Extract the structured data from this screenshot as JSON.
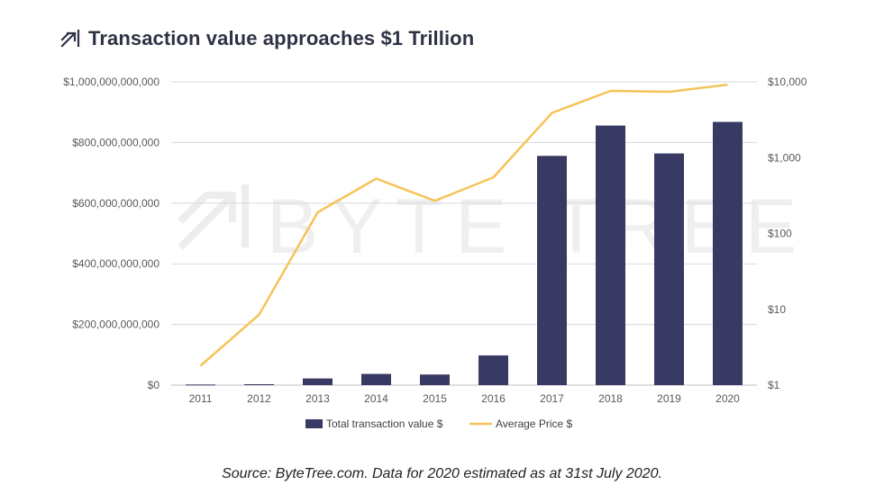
{
  "title": "Transaction value approaches $1 Trillion",
  "watermark": "BYTE TREE",
  "source": "Source: ByteTree.com. Data for 2020 estimated as at 31st July 2020.",
  "colors": {
    "bar": "#383a63",
    "line": "#f5c458",
    "grid": "#d9d9d9",
    "title": "#2e3344",
    "tick": "#595959"
  },
  "chart_data": {
    "type": "bar",
    "categories": [
      "2011",
      "2012",
      "2013",
      "2014",
      "2015",
      "2016",
      "2017",
      "2018",
      "2019",
      "2020"
    ],
    "series": [
      {
        "name": "Total transaction value $",
        "type": "bar",
        "axis": "left",
        "values": [
          2000000000,
          3000000000,
          22000000000,
          37000000000,
          35000000000,
          98000000000,
          756000000000,
          856000000000,
          764000000000,
          868000000000
        ]
      },
      {
        "name": "Average Price $",
        "type": "line",
        "axis": "right",
        "values": [
          1.8,
          8.5,
          190,
          530,
          270,
          550,
          3900,
          7600,
          7400,
          9200
        ]
      }
    ],
    "y_left": {
      "ticks": [
        0,
        200000000000,
        400000000000,
        600000000000,
        800000000000,
        1000000000000
      ],
      "tick_labels": [
        "$0",
        "$200,000,000,000",
        "$400,000,000,000",
        "$600,000,000,000",
        "$800,000,000,000",
        "$1,000,000,000,000"
      ],
      "ylim": [
        0,
        1000000000000
      ]
    },
    "y_right": {
      "scale": "log",
      "ticks": [
        1,
        10,
        100,
        1000,
        10000
      ],
      "tick_labels": [
        "$1",
        "$10",
        "$100",
        "$1,000",
        "$10,000"
      ],
      "ylim": [
        1,
        10000
      ]
    },
    "grid": true,
    "legend": "bottom"
  }
}
